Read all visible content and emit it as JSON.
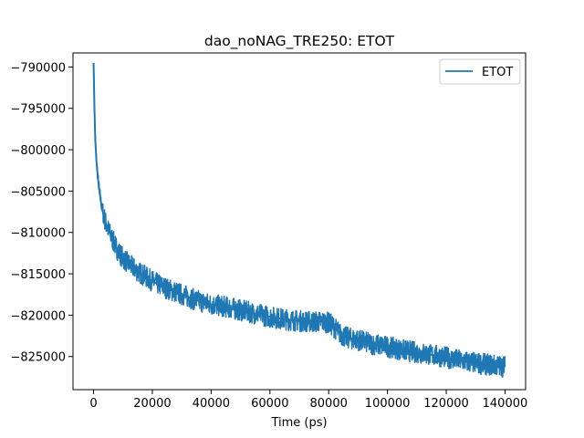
{
  "chart_data": {
    "type": "line",
    "title": "dao_noNAG_TRE250: ETOT",
    "xlabel": "Time (ps)",
    "ylabel": "",
    "xlim": [
      -7000,
      147000
    ],
    "ylim": [
      -829000,
      -788300
    ],
    "xticks": [
      0,
      20000,
      40000,
      60000,
      80000,
      100000,
      120000,
      140000
    ],
    "yticks": [
      -790000,
      -795000,
      -800000,
      -805000,
      -810000,
      -815000,
      -820000,
      -825000
    ],
    "grid": false,
    "legend_position": "upper right",
    "series": [
      {
        "name": "ETOT",
        "color": "#1f77b4",
        "noise_band": 1300,
        "x": [
          0,
          300,
          600,
          1000,
          1500,
          2000,
          2500,
          3000,
          4000,
          5000,
          6000,
          7000,
          8000,
          9000,
          10000,
          12000,
          15000,
          18000,
          20000,
          25000,
          30000,
          35000,
          40000,
          45000,
          50000,
          55000,
          60000,
          65000,
          70000,
          75000,
          78000,
          80000,
          82000,
          84000,
          86000,
          90000,
          95000,
          100000,
          105000,
          110000,
          115000,
          120000,
          125000,
          130000,
          135000,
          140000
        ],
        "y": [
          -789500,
          -795000,
          -799000,
          -801500,
          -803500,
          -805000,
          -806300,
          -807300,
          -808700,
          -809700,
          -810500,
          -811300,
          -812000,
          -812600,
          -813100,
          -813800,
          -814700,
          -815400,
          -815900,
          -816800,
          -817500,
          -818200,
          -818700,
          -819000,
          -819400,
          -819800,
          -820200,
          -820500,
          -820700,
          -820800,
          -820800,
          -820900,
          -821500,
          -822300,
          -822700,
          -823000,
          -823500,
          -823800,
          -824200,
          -824500,
          -824800,
          -825100,
          -825500,
          -825800,
          -826000,
          -826200
        ]
      }
    ]
  }
}
